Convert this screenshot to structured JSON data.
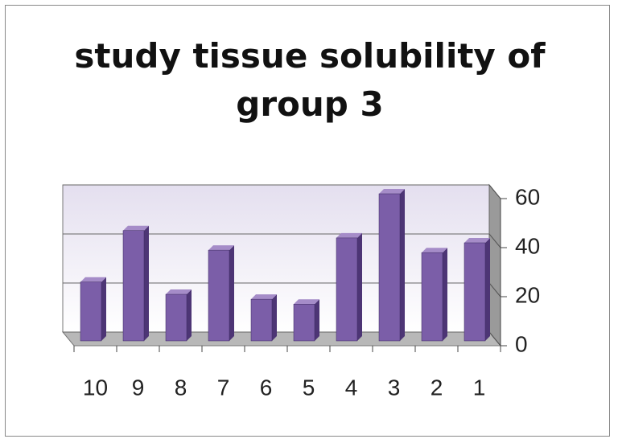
{
  "chart_data": {
    "type": "bar",
    "title": "study tissue solubility of group 3",
    "categories": [
      "10",
      "9",
      "8",
      "7",
      "6",
      "5",
      "4",
      "3",
      "2",
      "1"
    ],
    "values": [
      24,
      45,
      19,
      37,
      17,
      15,
      42,
      60,
      36,
      40
    ],
    "color": "#7b5ea8",
    "ylim": [
      0,
      60
    ],
    "yticks": [
      0,
      20,
      40,
      60
    ],
    "grid": true,
    "y_axis_side": "right"
  }
}
